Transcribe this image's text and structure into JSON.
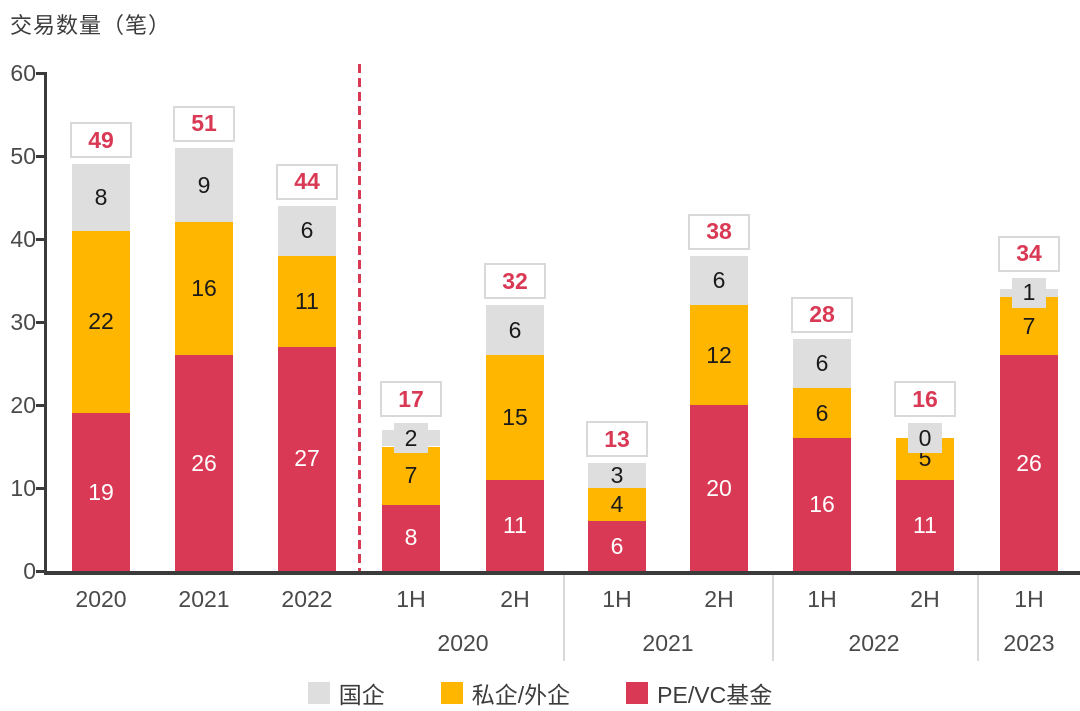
{
  "title": "交易数量（笔）",
  "legend": [
    {
      "name": "国企",
      "color": "#dedede"
    },
    {
      "name": "私企/外企",
      "color": "#ffb600"
    },
    {
      "name": "PE/VC基金",
      "color": "#d93954"
    }
  ],
  "colors": {
    "soe_gray": "#dedede",
    "private_yellow": "#ffb600",
    "pevc_rose": "#d93954",
    "axis": "#3b3b3b",
    "tick_text": "#4a4a4a",
    "total_text": "#d93954",
    "total_box_border": "#d9d9d9"
  },
  "chart_data": {
    "type": "bar",
    "stacked": true,
    "title": "交易数量（笔）",
    "ylabel": "交易数量（笔）",
    "ylim": [
      0,
      60
    ],
    "yticks": [
      0,
      10,
      20,
      30,
      40,
      50,
      60
    ],
    "grid": false,
    "legend_position": "bottom",
    "categories": [
      "2020",
      "2021",
      "2022",
      "1H 2020",
      "2H 2020",
      "1H 2021",
      "2H 2021",
      "1H 2022",
      "2H 2022",
      "1H 2023"
    ],
    "series": [
      {
        "name": "PE/VC基金",
        "color": "#d93954",
        "values": [
          19,
          26,
          27,
          8,
          11,
          6,
          20,
          16,
          11,
          26
        ]
      },
      {
        "name": "私企/外企",
        "color": "#ffb600",
        "values": [
          22,
          16,
          11,
          7,
          15,
          4,
          12,
          6,
          5,
          7
        ]
      },
      {
        "name": "国企",
        "color": "#dedede",
        "values": [
          8,
          9,
          6,
          2,
          6,
          3,
          6,
          6,
          0,
          1
        ]
      }
    ],
    "totals": [
      49,
      51,
      44,
      17,
      32,
      13,
      38,
      28,
      16,
      34
    ],
    "x_row1_labels": [
      "2020",
      "2021",
      "2022",
      "1H",
      "2H",
      "1H",
      "2H",
      "1H",
      "2H",
      "1H"
    ],
    "x_row2_groups": [
      {
        "label": "2020",
        "bar_indexes": [
          3,
          4
        ]
      },
      {
        "label": "2021",
        "bar_indexes": [
          5,
          6
        ]
      },
      {
        "label": "2022",
        "bar_indexes": [
          7,
          8
        ]
      },
      {
        "label": "2023",
        "bar_indexes": [
          9
        ]
      }
    ],
    "annual_vs_halfyear_separator_after_index": 2
  }
}
